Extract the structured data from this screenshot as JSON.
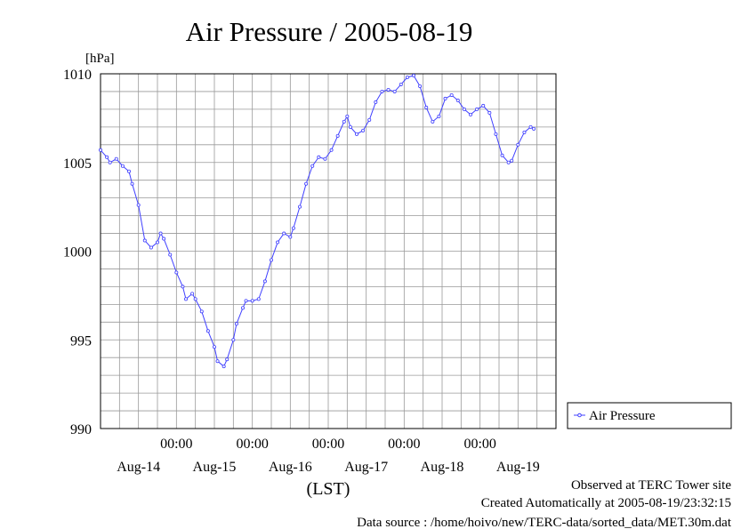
{
  "chart_data": {
    "type": "line",
    "title": "Air Pressure / 2005-08-19",
    "ylabel": "[hPa]",
    "xlabel": "(LST)",
    "ylim": [
      990,
      1010
    ],
    "yticks": [
      990,
      995,
      1000,
      1005,
      1010
    ],
    "xlim": [
      0,
      144
    ],
    "x_time_labels": [
      {
        "x": 24,
        "label": "00:00"
      },
      {
        "x": 48,
        "label": "00:00"
      },
      {
        "x": 72,
        "label": "00:00"
      },
      {
        "x": 96,
        "label": "00:00"
      },
      {
        "x": 120,
        "label": "00:00"
      }
    ],
    "x_day_labels": [
      {
        "x": 12,
        "label": "Aug-14"
      },
      {
        "x": 36,
        "label": "Aug-15"
      },
      {
        "x": 60,
        "label": "Aug-16"
      },
      {
        "x": 84,
        "label": "Aug-17"
      },
      {
        "x": 108,
        "label": "Aug-18"
      },
      {
        "x": 132,
        "label": "Aug-19"
      }
    ],
    "grid": true,
    "legend_position": "right",
    "series": [
      {
        "name": "Air Pressure",
        "color": "#4040ff",
        "points": [
          [
            0,
            1005.7
          ],
          [
            2,
            1005.3
          ],
          [
            3,
            1005.0
          ],
          [
            5,
            1005.2
          ],
          [
            7,
            1004.8
          ],
          [
            9,
            1004.5
          ],
          [
            10,
            1003.8
          ],
          [
            12,
            1002.6
          ],
          [
            14,
            1000.6
          ],
          [
            16,
            1000.2
          ],
          [
            18,
            1000.5
          ],
          [
            19,
            1001.0
          ],
          [
            20,
            1000.7
          ],
          [
            22,
            999.8
          ],
          [
            24,
            998.8
          ],
          [
            26,
            998.0
          ],
          [
            27,
            997.3
          ],
          [
            29,
            997.6
          ],
          [
            30,
            997.3
          ],
          [
            32,
            996.6
          ],
          [
            34,
            995.5
          ],
          [
            36,
            994.6
          ],
          [
            37,
            993.8
          ],
          [
            39,
            993.5
          ],
          [
            40,
            993.9
          ],
          [
            42,
            995.0
          ],
          [
            43,
            995.9
          ],
          [
            45,
            996.8
          ],
          [
            46,
            997.2
          ],
          [
            48,
            997.2
          ],
          [
            50,
            997.3
          ],
          [
            52,
            998.3
          ],
          [
            54,
            999.5
          ],
          [
            56,
            1000.5
          ],
          [
            58,
            1001.0
          ],
          [
            60,
            1000.8
          ],
          [
            61,
            1001.3
          ],
          [
            63,
            1002.5
          ],
          [
            65,
            1003.8
          ],
          [
            67,
            1004.8
          ],
          [
            69,
            1005.3
          ],
          [
            71,
            1005.2
          ],
          [
            73,
            1005.7
          ],
          [
            75,
            1006.5
          ],
          [
            77,
            1007.3
          ],
          [
            78,
            1007.6
          ],
          [
            79,
            1007.0
          ],
          [
            81,
            1006.6
          ],
          [
            83,
            1006.8
          ],
          [
            85,
            1007.4
          ],
          [
            87,
            1008.4
          ],
          [
            89,
            1009.0
          ],
          [
            91,
            1009.1
          ],
          [
            93,
            1009.0
          ],
          [
            95,
            1009.4
          ],
          [
            97,
            1009.8
          ],
          [
            99,
            1009.9
          ],
          [
            101,
            1009.3
          ],
          [
            103,
            1008.1
          ],
          [
            105,
            1007.3
          ],
          [
            107,
            1007.6
          ],
          [
            109,
            1008.6
          ],
          [
            111,
            1008.8
          ],
          [
            113,
            1008.5
          ],
          [
            115,
            1008.0
          ],
          [
            117,
            1007.7
          ],
          [
            119,
            1008.0
          ],
          [
            121,
            1008.2
          ],
          [
            123,
            1007.8
          ],
          [
            125,
            1006.6
          ],
          [
            127,
            1005.4
          ],
          [
            129,
            1005.0
          ],
          [
            130,
            1005.1
          ],
          [
            132,
            1006.0
          ],
          [
            134,
            1006.7
          ],
          [
            136,
            1007.0
          ],
          [
            137,
            1006.9
          ]
        ]
      }
    ]
  },
  "footer": {
    "site": "Observed at TERC Tower site",
    "created": "Created Automatically at 2005-08-19/23:32:15",
    "source": "Data source : /home/hoivo/new/TERC-data/sorted_data/MET.30m.dat"
  }
}
